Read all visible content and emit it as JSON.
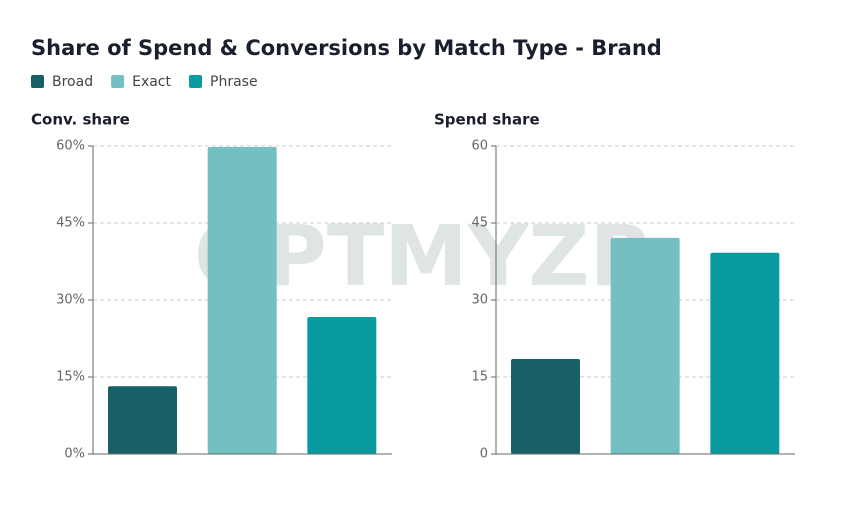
{
  "title": "Share of Spend & Conversions by Match Type - Brand",
  "watermark": "OPTMYZR",
  "chart_data": [
    {
      "type": "bar",
      "subtitle": "Conv. share",
      "series": [
        {
          "name": "Broad",
          "color": "#176166",
          "values": [
            13.2
          ]
        },
        {
          "name": "Exact",
          "color": "#74bfc2",
          "values": [
            59.8
          ]
        },
        {
          "name": "Phrase",
          "color": "#0a9ba0",
          "values": [
            26.7
          ]
        }
      ],
      "ylim": [
        0,
        60
      ],
      "yticks": [
        {
          "value": 0,
          "label": "0%"
        },
        {
          "value": 15,
          "label": "15%"
        },
        {
          "value": 30,
          "label": "30%"
        },
        {
          "value": 45,
          "label": "45%"
        },
        {
          "value": 60,
          "label": "60%"
        }
      ],
      "grid": true
    },
    {
      "type": "bar",
      "subtitle": "Spend share",
      "series": [
        {
          "name": "Broad",
          "color": "#176166",
          "values": [
            18.5
          ]
        },
        {
          "name": "Exact",
          "color": "#74bfc2",
          "values": [
            42.1
          ]
        },
        {
          "name": "Phrase",
          "color": "#0a9ba0",
          "values": [
            39.2
          ]
        }
      ],
      "ylim": [
        0,
        60
      ],
      "yticks": [
        0,
        15,
        30,
        45,
        60
      ],
      "grid": true
    }
  ]
}
